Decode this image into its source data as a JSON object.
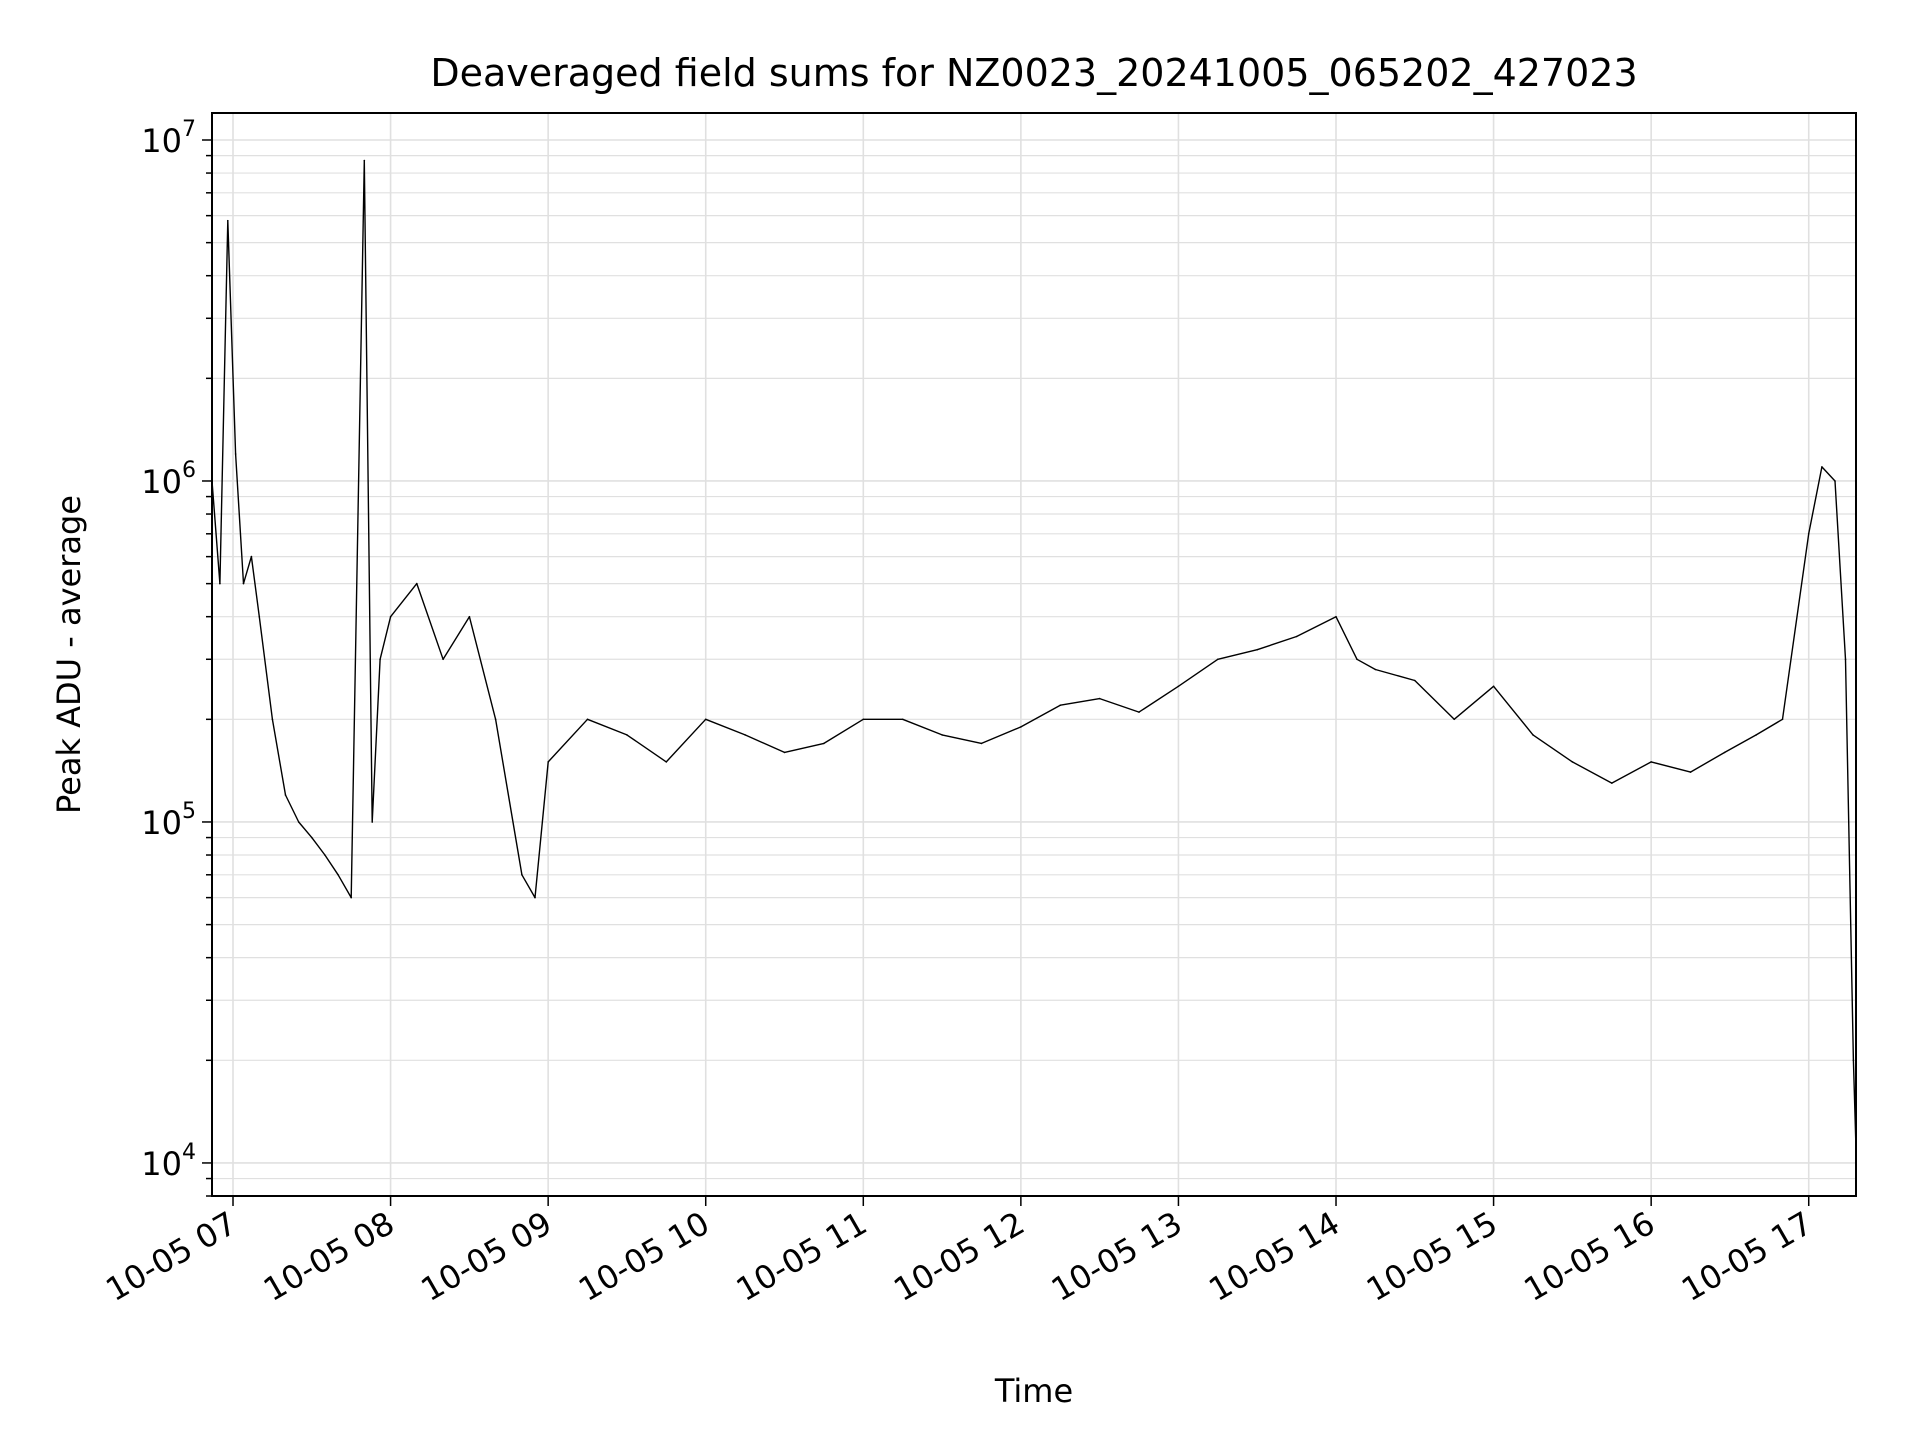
{
  "chart_data": {
    "type": "line",
    "title": "Deaveraged field sums for NZ0023_20241005_065202_427023",
    "xlabel": "Time",
    "ylabel": "Peak ADU - average",
    "yscale": "log",
    "ylim": [
      8000,
      12000000
    ],
    "xlim": [
      "2024-10-05 06:52",
      "2024-10-05 17:18"
    ],
    "grid": true,
    "legend": "none",
    "x_tick_labels": [
      "10-05 07",
      "10-05 08",
      "10-05 09",
      "10-05 10",
      "10-05 11",
      "10-05 12",
      "10-05 13",
      "10-05 14",
      "10-05 15",
      "10-05 16",
      "10-05 17"
    ],
    "y_tick_labels": [
      {
        "value": 10000,
        "base": "10",
        "exp": "4"
      },
      {
        "value": 100000,
        "base": "10",
        "exp": "5"
      },
      {
        "value": 1000000,
        "base": "10",
        "exp": "6"
      },
      {
        "value": 10000000,
        "base": "10",
        "exp": "7"
      }
    ],
    "line_color": "#000000",
    "grid_color": "#e0e0e0",
    "series": [
      {
        "x": [
          "2024-10-05 06:52",
          "2024-10-05 06:55",
          "2024-10-05 06:58",
          "2024-10-05 07:01",
          "2024-10-05 07:04",
          "2024-10-05 07:07",
          "2024-10-05 07:10",
          "2024-10-05 07:15",
          "2024-10-05 07:20",
          "2024-10-05 07:25",
          "2024-10-05 07:30",
          "2024-10-05 07:35",
          "2024-10-05 07:40",
          "2024-10-05 07:45",
          "2024-10-05 07:50",
          "2024-10-05 07:53",
          "2024-10-05 07:56",
          "2024-10-05 08:00",
          "2024-10-05 08:10",
          "2024-10-05 08:20",
          "2024-10-05 08:30",
          "2024-10-05 08:40",
          "2024-10-05 08:50",
          "2024-10-05 08:55",
          "2024-10-05 09:00",
          "2024-10-05 09:15",
          "2024-10-05 09:30",
          "2024-10-05 09:45",
          "2024-10-05 10:00",
          "2024-10-05 10:15",
          "2024-10-05 10:30",
          "2024-10-05 10:45",
          "2024-10-05 11:00",
          "2024-10-05 11:15",
          "2024-10-05 11:30",
          "2024-10-05 11:45",
          "2024-10-05 12:00",
          "2024-10-05 12:15",
          "2024-10-05 12:30",
          "2024-10-05 12:45",
          "2024-10-05 13:00",
          "2024-10-05 13:15",
          "2024-10-05 13:30",
          "2024-10-05 13:45",
          "2024-10-05 14:00",
          "2024-10-05 14:08",
          "2024-10-05 14:15",
          "2024-10-05 14:30",
          "2024-10-05 14:45",
          "2024-10-05 15:00",
          "2024-10-05 15:15",
          "2024-10-05 15:30",
          "2024-10-05 15:45",
          "2024-10-05 16:00",
          "2024-10-05 16:15",
          "2024-10-05 16:28",
          "2024-10-05 16:40",
          "2024-10-05 16:50",
          "2024-10-05 17:00",
          "2024-10-05 17:05",
          "2024-10-05 17:10",
          "2024-10-05 17:14",
          "2024-10-05 17:17",
          "2024-10-05 17:18"
        ],
        "y": [
          1000000,
          500000,
          5800000,
          1200000,
          500000,
          600000,
          400000,
          200000,
          120000,
          100000,
          90000,
          80000,
          70000,
          60000,
          8700000,
          100000,
          300000,
          400000,
          500000,
          300000,
          400000,
          200000,
          70000,
          60000,
          150000,
          200000,
          180000,
          150000,
          200000,
          180000,
          160000,
          170000,
          200000,
          200000,
          180000,
          170000,
          190000,
          220000,
          230000,
          210000,
          250000,
          300000,
          320000,
          350000,
          400000,
          300000,
          280000,
          260000,
          200000,
          250000,
          180000,
          150000,
          130000,
          150000,
          140000,
          160000,
          180000,
          200000,
          700000,
          1100000,
          1000000,
          300000,
          20000,
          11000
        ]
      }
    ]
  }
}
